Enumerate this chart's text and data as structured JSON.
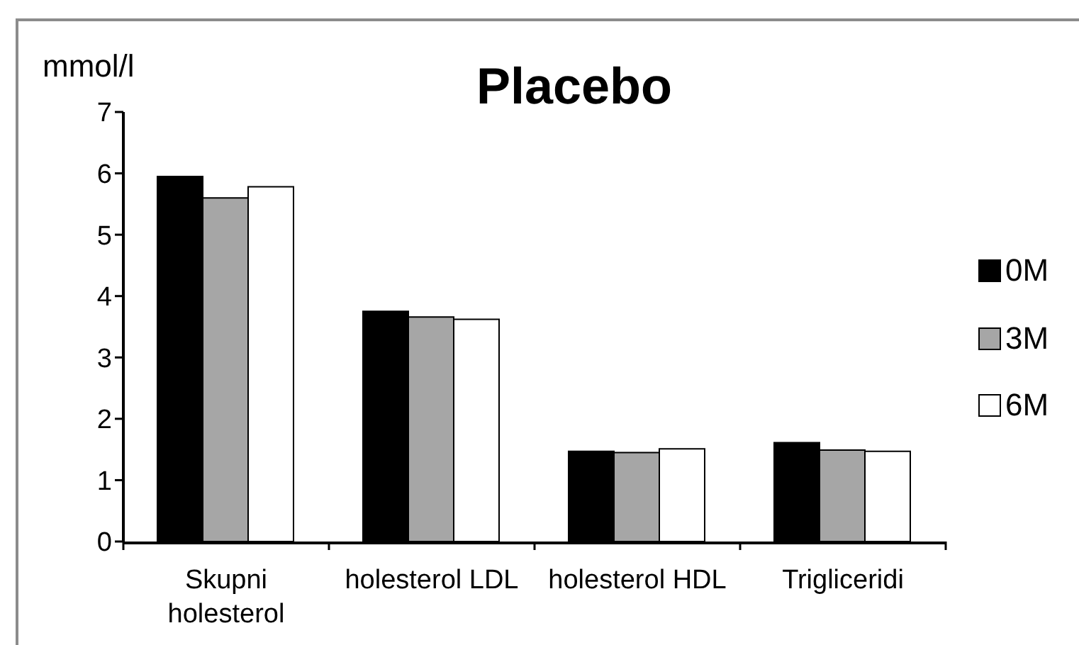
{
  "chart_data": {
    "type": "bar",
    "title": "Placebo",
    "ylabel": "mmol/l",
    "categories": [
      "Skupni holesterol",
      "holesterol LDL",
      "holesterol HDL",
      "Trigliceridi"
    ],
    "series": [
      {
        "name": "0M",
        "color": "#000000",
        "values": [
          5.95,
          3.75,
          1.47,
          1.61
        ]
      },
      {
        "name": "3M",
        "color": "#a6a6a6",
        "values": [
          5.6,
          3.66,
          1.45,
          1.49
        ]
      },
      {
        "name": "6M",
        "color": "#ffffff",
        "values": [
          5.78,
          3.62,
          1.51,
          1.47
        ]
      }
    ],
    "ylim": [
      0,
      7
    ],
    "yticks": [
      0,
      1,
      2,
      3,
      4,
      5,
      6,
      7
    ],
    "legend": "right"
  }
}
